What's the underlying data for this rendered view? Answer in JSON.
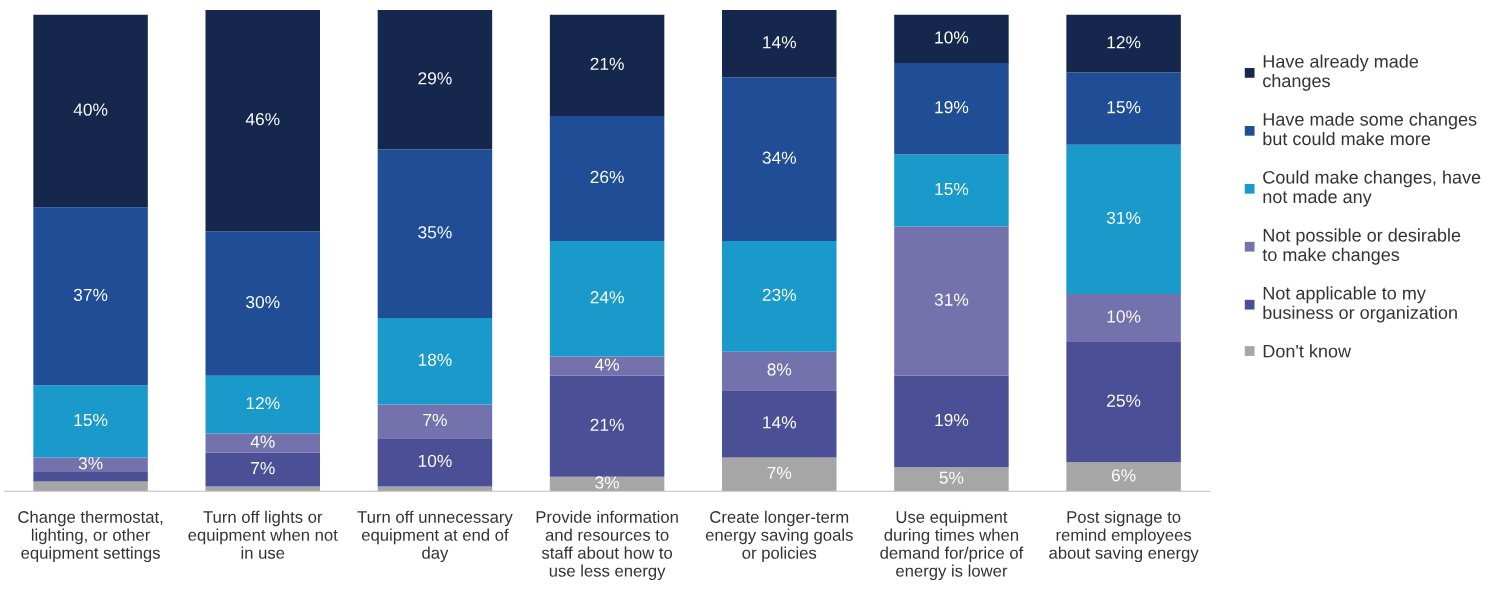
{
  "chart_data": {
    "type": "bar",
    "stacked": true,
    "ylim": [
      0,
      100
    ],
    "legend": "right",
    "grid": false,
    "categories": [
      "Change thermostat,\nlighting, or other\nequipment settings",
      "Turn off lights or\nequipment when not\nin use",
      "Turn off unnecessary\nequipment at end of\nday",
      "Provide information\nand resources to\nstaff about how to\nuse less energy",
      "Create longer-term\nenergy saving goals\nor policies",
      "Use equipment\nduring times when\ndemand for/price of\nenergy is lower",
      "Post signage to\nremind employees\nabout saving energy"
    ],
    "series": [
      {
        "name": "Don't know",
        "color": "#a6a6a6",
        "values": [
          2,
          1,
          1,
          3,
          7,
          5,
          6
        ],
        "value_labels": [
          null,
          null,
          null,
          "3%",
          "7%",
          "5%",
          "6%"
        ]
      },
      {
        "name": "Not applicable to my\nbusiness or organization",
        "color": "#4b5096",
        "values": [
          2,
          7,
          10,
          21,
          14,
          19,
          25
        ],
        "value_labels": [
          null,
          "7%",
          "10%",
          "21%",
          "14%",
          "19%",
          "25%"
        ]
      },
      {
        "name": "Not possible or desirable\nto make changes",
        "color": "#7472ad",
        "values": [
          3,
          4,
          7,
          4,
          8,
          31,
          10
        ],
        "value_labels": [
          "3%",
          "4%",
          "7%",
          "4%",
          "8%",
          "31%",
          "10%"
        ]
      },
      {
        "name": "Could make changes, have\nnot made any",
        "color": "#1a9acb",
        "values": [
          15,
          12,
          18,
          24,
          23,
          15,
          31
        ],
        "value_labels": [
          "15%",
          "12%",
          "18%",
          "24%",
          "23%",
          "15%",
          "31%"
        ]
      },
      {
        "name": "Have made some changes\nbut could make more",
        "color": "#1f4e96",
        "values": [
          37,
          30,
          35,
          26,
          34,
          19,
          15
        ],
        "value_labels": [
          "37%",
          "30%",
          "35%",
          "26%",
          "34%",
          "19%",
          "15%"
        ]
      },
      {
        "name": "Have already made\nchanges",
        "color": "#15274d",
        "values": [
          40,
          46,
          29,
          21,
          14,
          10,
          12
        ],
        "value_labels": [
          "40%",
          "46%",
          "29%",
          "21%",
          "14%",
          "10%",
          "12%"
        ]
      }
    ]
  }
}
